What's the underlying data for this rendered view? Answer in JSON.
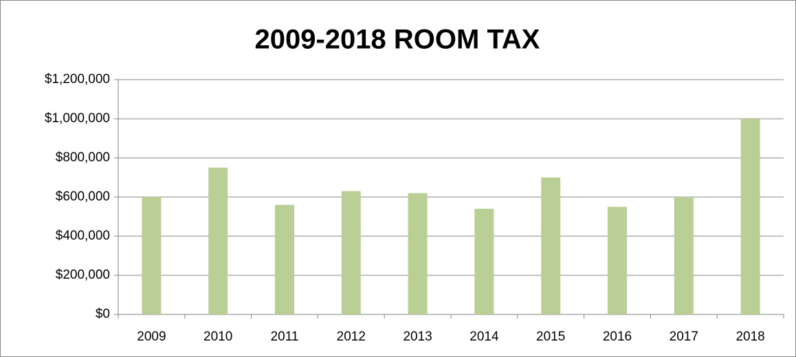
{
  "chart_data": {
    "type": "bar",
    "title": "2009-2018 ROOM TAX",
    "categories": [
      "2009",
      "2010",
      "2011",
      "2012",
      "2013",
      "2014",
      "2015",
      "2016",
      "2017",
      "2018"
    ],
    "values": [
      600000,
      750000,
      560000,
      630000,
      620000,
      540000,
      700000,
      550000,
      600000,
      1000000
    ],
    "color": "#b9cf96",
    "ylim": [
      0,
      1200000
    ],
    "yticks": [
      {
        "value": 0,
        "label": "$0"
      },
      {
        "value": 200000,
        "label": "$200,000"
      },
      {
        "value": 400000,
        "label": "$400,000"
      },
      {
        "value": 600000,
        "label": "$600,000"
      },
      {
        "value": 800000,
        "label": "$800,000"
      },
      {
        "value": 1000000,
        "label": "$1,000,000"
      },
      {
        "value": 1200000,
        "label": "$1,200,000"
      }
    ],
    "grid": true
  }
}
